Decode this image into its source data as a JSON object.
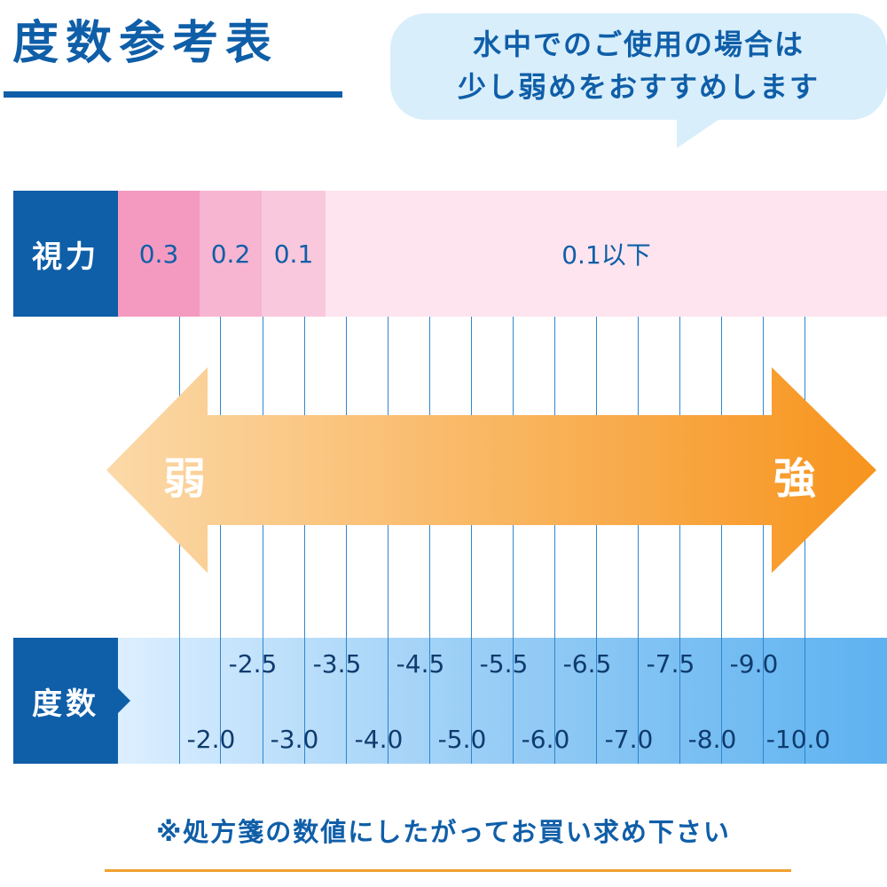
{
  "title": "度数参考表",
  "bubble": {
    "line1": "水中でのご使用の場合は",
    "line2": "少し弱めをおすすめします"
  },
  "vision": {
    "label": "視力",
    "cells": [
      {
        "value": "0.3",
        "color": "#f49ac0"
      },
      {
        "value": "0.2",
        "color": "#f7b5d1"
      },
      {
        "value": "0.1",
        "color": "#f9c8dc"
      },
      {
        "value": "0.1以下",
        "color": "#fde4ee"
      }
    ]
  },
  "arrow": {
    "weak_label": "弱",
    "strong_label": "強",
    "color_start": "#fbd9a8",
    "color_end": "#f7941d"
  },
  "degree": {
    "label": "度数",
    "top_row": [
      "-2.5",
      "-3.5",
      "-4.5",
      "-5.5",
      "-6.5",
      "-7.5",
      "-9.0"
    ],
    "bottom_row": [
      "-2.0",
      "-3.0",
      "-4.0",
      "-5.0",
      "-6.0",
      "-7.0",
      "-8.0",
      "-10.0"
    ]
  },
  "footnote": "※処方箋の数値にしたがってお買い求め下さい",
  "colors": {
    "brand_blue": "#0f5ea8",
    "accent_orange": "#f0a030"
  }
}
